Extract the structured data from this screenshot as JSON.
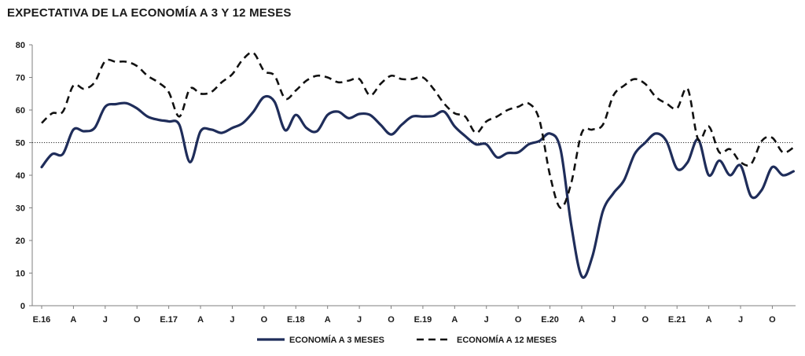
{
  "chart_data": {
    "type": "line",
    "title": "EXPECTATIVA DE LA ECONOMÍA A 3 Y 12 MESES",
    "xlabel": "",
    "ylabel": "",
    "ylim": [
      0,
      80
    ],
    "yticks": [
      0,
      10,
      20,
      30,
      40,
      50,
      60,
      70,
      80
    ],
    "x_start": "2016-01",
    "x_ticks": [
      "E.16",
      "A",
      "J",
      "O",
      "E.17",
      "A",
      "J",
      "O",
      "E.18",
      "A",
      "J",
      "O",
      "E.19",
      "A",
      "J",
      "O",
      "E.20",
      "A",
      "J",
      "O",
      "E.21",
      "A",
      "J",
      "O"
    ],
    "reference_line": {
      "value": 50,
      "style": "dotted"
    },
    "grid": false,
    "legend_position": "bottom",
    "series": [
      {
        "name": "ECONOMÍA A 3 MESES",
        "color": "#1f2d5a",
        "style": "solid",
        "values": [
          42.5,
          46.5,
          46.5,
          54,
          53.5,
          54.5,
          61,
          61.8,
          62.1,
          60.5,
          58,
          57,
          56.5,
          55.5,
          44,
          53.5,
          54,
          53,
          54.5,
          56,
          59.5,
          64,
          62.5,
          53.8,
          58.5,
          54.5,
          53.5,
          58.5,
          59.5,
          57.5,
          58.8,
          58.5,
          55.5,
          52.5,
          55.5,
          58,
          58,
          58.2,
          59.5,
          55,
          52,
          49.5,
          49.5,
          45.5,
          46.8,
          47,
          49.5,
          50.5,
          52.8,
          48,
          25,
          9,
          15,
          29,
          34.5,
          38.5,
          46.5,
          50,
          52.8,
          50.5,
          42,
          44,
          51,
          40,
          44.5,
          40,
          43,
          33.5,
          35.5,
          42.5,
          40,
          41.2
        ]
      },
      {
        "name": "ECONOMÍA A 12 MESES",
        "color": "#111111",
        "style": "dashed",
        "values": [
          56,
          59,
          59.5,
          67.5,
          66.5,
          68.5,
          75,
          74.8,
          74.8,
          73.5,
          70.5,
          68.5,
          65.5,
          58,
          66.5,
          65,
          65.5,
          68.5,
          71,
          75.5,
          77.5,
          72,
          70.5,
          63.5,
          66,
          69,
          70.5,
          70,
          68.5,
          69,
          69.5,
          64.5,
          68,
          70.5,
          69.5,
          69.5,
          70,
          66.5,
          62,
          59,
          58,
          53,
          56.5,
          58,
          60,
          61,
          62,
          57,
          40,
          30,
          37.5,
          53,
          54,
          55.5,
          64.5,
          67.5,
          69.5,
          68,
          64,
          62,
          60.5,
          66.5,
          51,
          55,
          47,
          48,
          44,
          43.5,
          50.5,
          51.5,
          47,
          48.5
        ]
      }
    ]
  }
}
